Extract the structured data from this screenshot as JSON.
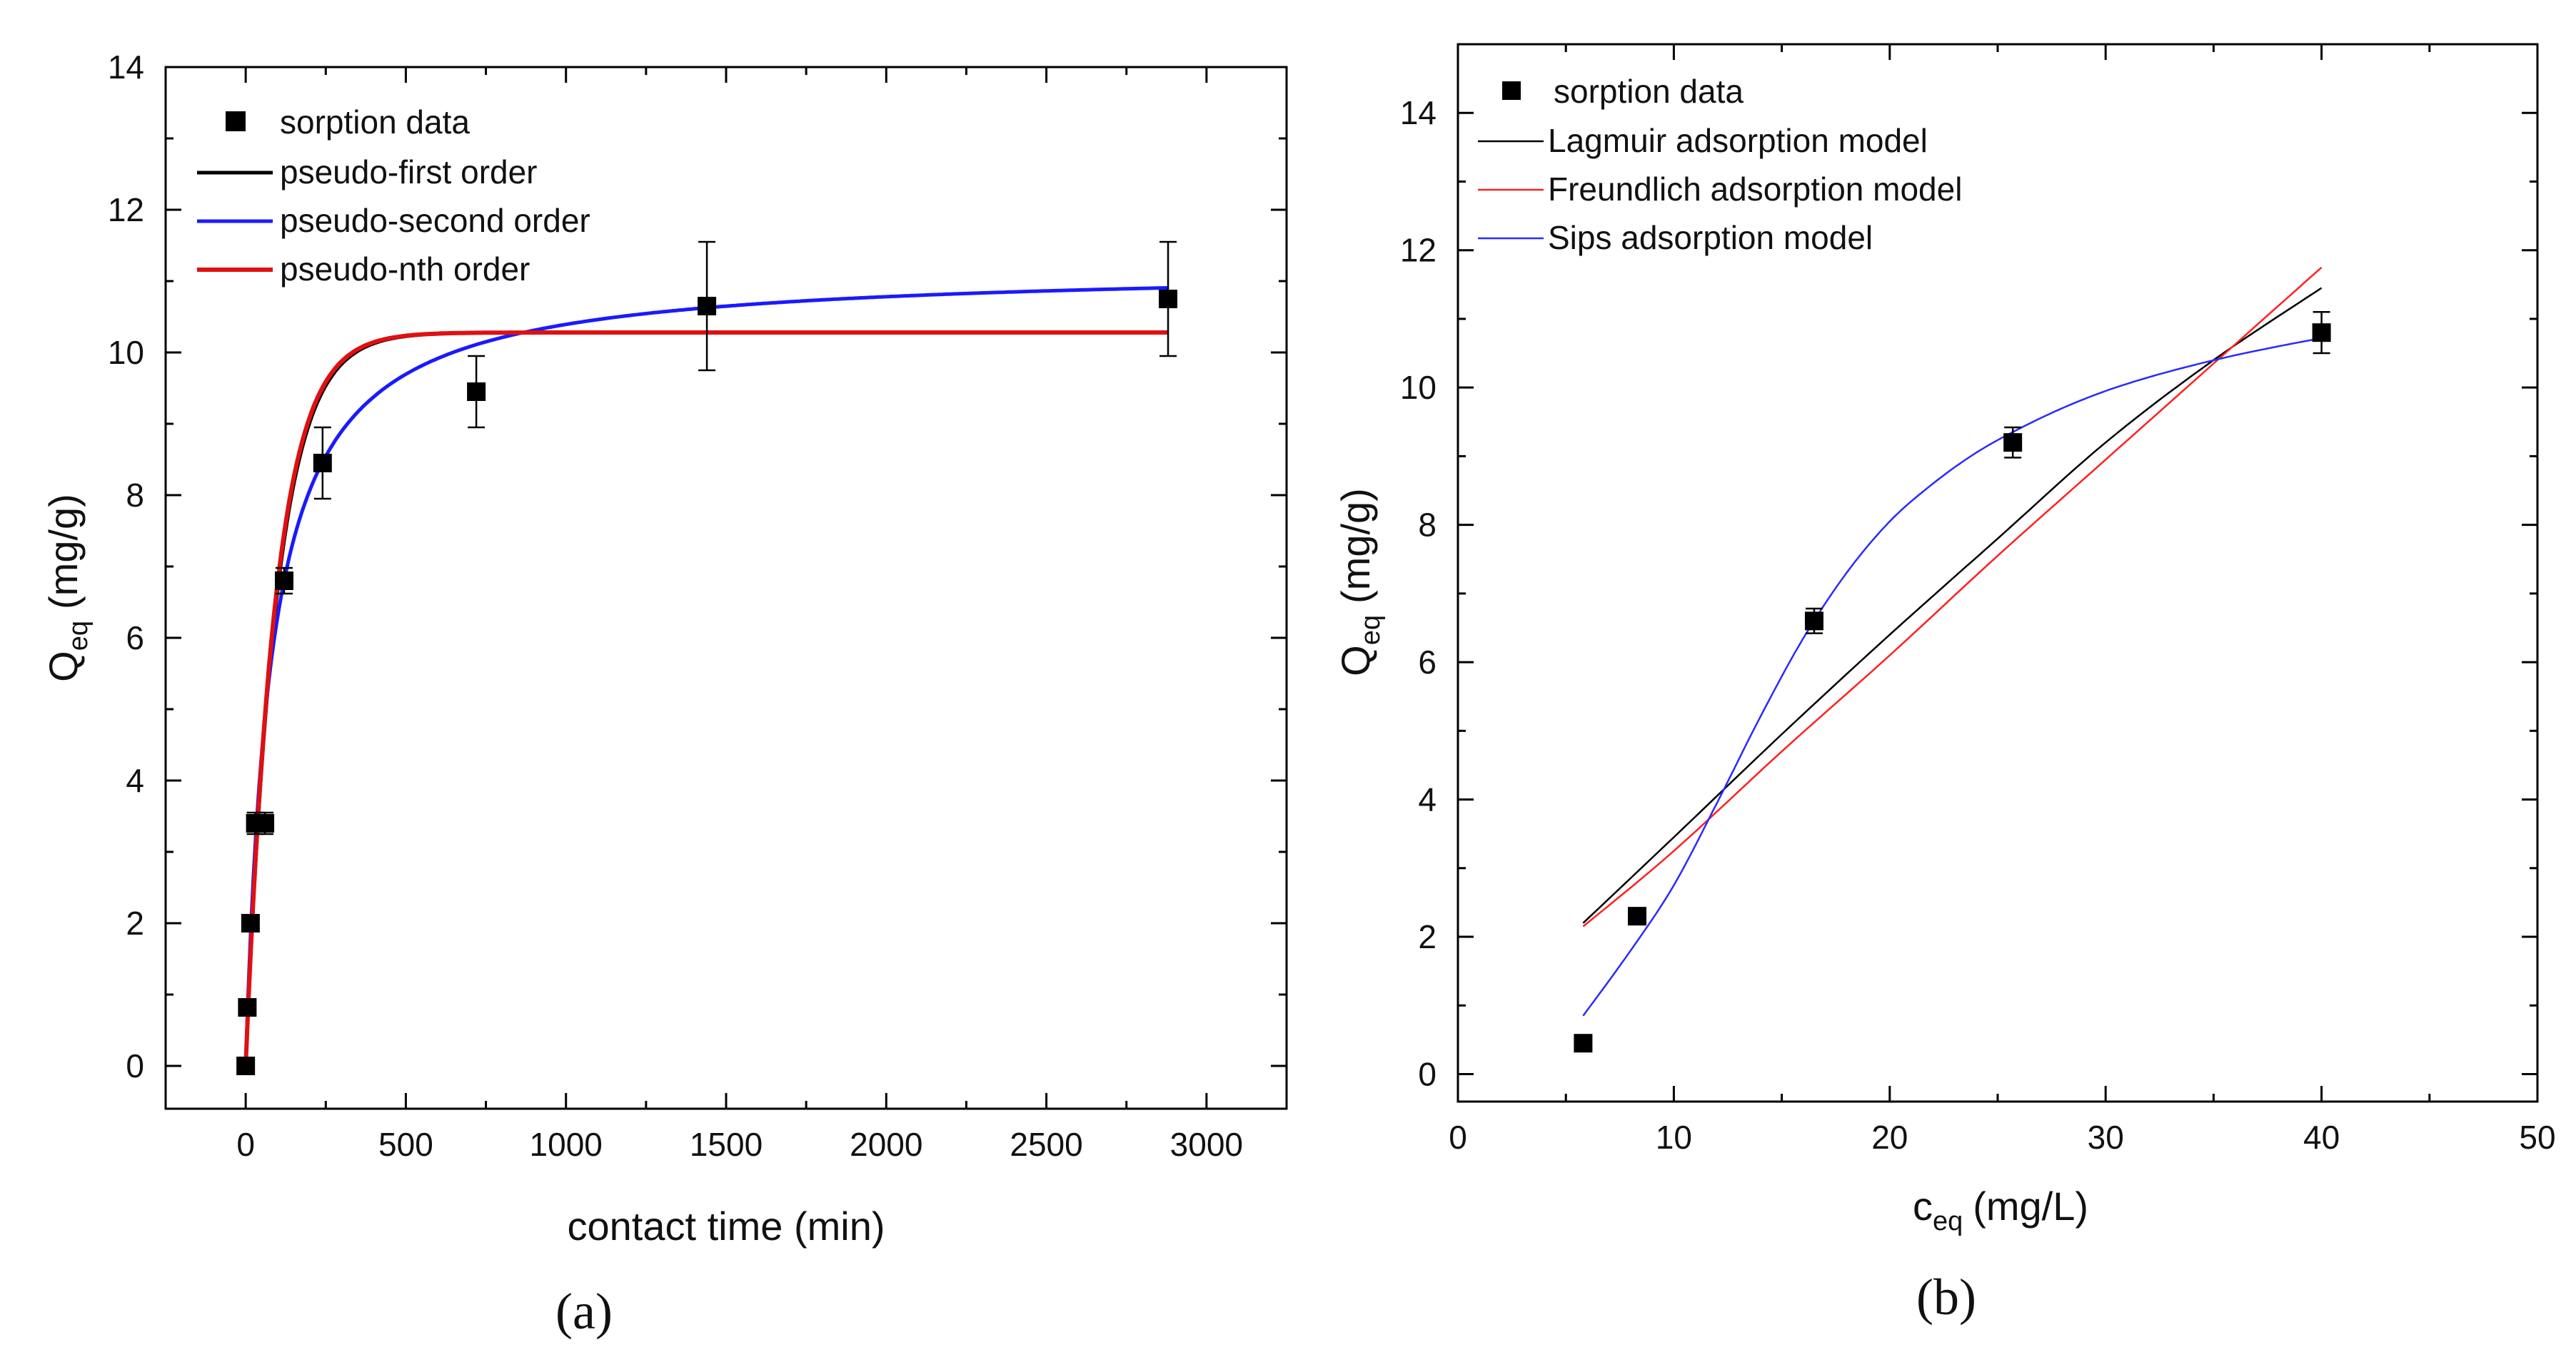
{
  "chart_data": [
    {
      "panel": "(a)",
      "type": "scatter",
      "xlabel": "contact time (min)",
      "ylabel": "Q",
      "ylabel_sub": "eq",
      "ylabel_unit": "(mg/g)",
      "xlim": [
        -250,
        3250
      ],
      "ylim": [
        -0.6,
        14
      ],
      "xticks": [
        0,
        500,
        1000,
        1500,
        2000,
        2500,
        3000
      ],
      "yticks": [
        0,
        2,
        4,
        6,
        8,
        10,
        12,
        14
      ],
      "legend_position": "top-left",
      "points": {
        "name": "sorption data",
        "x": [
          0,
          5,
          15,
          30,
          60,
          120,
          240,
          720,
          1440,
          2880
        ],
        "y": [
          0,
          0.82,
          2.0,
          3.4,
          3.4,
          6.8,
          8.45,
          9.45,
          10.65,
          10.75
        ],
        "err": [
          0,
          0,
          0,
          0.15,
          0.15,
          0.18,
          0.5,
          0.5,
          0.9,
          0.8
        ]
      },
      "series": [
        {
          "name": "pseudo-first order",
          "color": "#000000",
          "qe": 10.28,
          "k": 0.0105
        },
        {
          "name": "pseudo-second order",
          "color": "#1a1aff",
          "qe": 11.2,
          "k": 0.00115
        },
        {
          "name": "pseudo-nth order",
          "color": "#e01010",
          "qe": 10.28,
          "k": 0.0108
        }
      ]
    },
    {
      "panel": "(b)",
      "type": "scatter",
      "xlabel": "c",
      "xlabel_sub": "eq",
      "xlabel_unit": "(mg/L)",
      "ylabel": "Q",
      "ylabel_sub": "eq",
      "ylabel_unit": "(mg/g)",
      "xlim": [
        0,
        50
      ],
      "ylim": [
        -0.4,
        15
      ],
      "xticks": [
        0,
        10,
        20,
        30,
        40,
        50
      ],
      "yticks": [
        0,
        2,
        4,
        6,
        8,
        10,
        12,
        14
      ],
      "legend_position": "top-left",
      "points": {
        "name": "sorption data",
        "x": [
          5.8,
          8.3,
          16.5,
          25.7,
          40.0
        ],
        "y": [
          0.45,
          2.3,
          6.6,
          9.2,
          10.8
        ],
        "err": [
          0,
          0.12,
          0.18,
          0.22,
          0.3
        ]
      },
      "series": [
        {
          "name": "Lagmuir adsorption model",
          "color": "#000000",
          "x": [
            5.8,
            10,
            15,
            20,
            25,
            30,
            35,
            40
          ],
          "y": [
            2.2,
            3.45,
            4.95,
            6.4,
            7.8,
            9.2,
            10.4,
            11.45
          ]
        },
        {
          "name": "Freundlich adsorption model",
          "color": "#ff2020",
          "x": [
            5.8,
            10,
            15,
            20,
            25,
            30,
            35,
            40
          ],
          "y": [
            2.15,
            3.25,
            4.7,
            6.1,
            7.55,
            8.95,
            10.35,
            11.75
          ]
        },
        {
          "name": "Sips adsorption model",
          "color": "#2a2aff",
          "x": [
            5.8,
            8,
            10,
            12,
            14,
            16,
            18,
            20,
            22,
            24,
            26,
            28,
            30,
            32,
            34,
            36,
            38,
            40
          ],
          "y": [
            0.85,
            1.8,
            2.75,
            3.95,
            5.2,
            6.35,
            7.3,
            8.05,
            8.6,
            9.05,
            9.4,
            9.7,
            9.95,
            10.15,
            10.32,
            10.47,
            10.6,
            10.72
          ]
        }
      ]
    }
  ]
}
